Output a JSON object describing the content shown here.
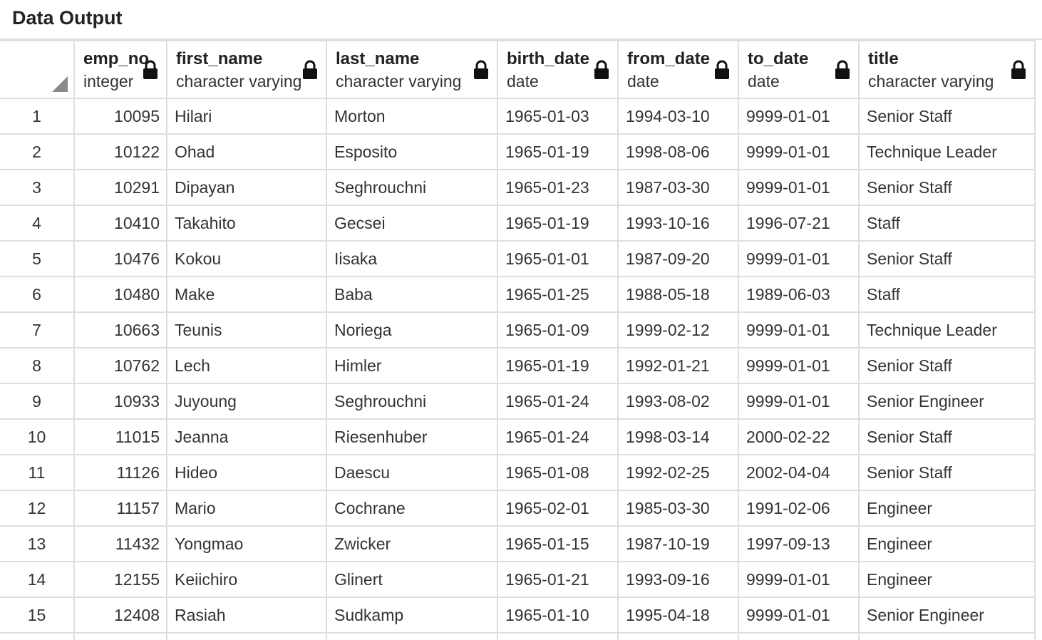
{
  "panel": {
    "title": "Data Output"
  },
  "icons": {
    "column_lock": "lock-icon",
    "corner": "select-all-corner"
  },
  "columns": [
    {
      "name": "emp_no",
      "type": "integer"
    },
    {
      "name": "first_name",
      "type": "character varying"
    },
    {
      "name": "last_name",
      "type": "character varying"
    },
    {
      "name": "birth_date",
      "type": "date"
    },
    {
      "name": "from_date",
      "type": "date"
    },
    {
      "name": "to_date",
      "type": "date"
    },
    {
      "name": "title",
      "type": "character varying"
    }
  ],
  "rows": [
    {
      "n": "1",
      "cells": [
        "10095",
        "Hilari",
        "Morton",
        "1965-01-03",
        "1994-03-10",
        "9999-01-01",
        "Senior Staff"
      ]
    },
    {
      "n": "2",
      "cells": [
        "10122",
        "Ohad",
        "Esposito",
        "1965-01-19",
        "1998-08-06",
        "9999-01-01",
        "Technique Leader"
      ]
    },
    {
      "n": "3",
      "cells": [
        "10291",
        "Dipayan",
        "Seghrouchni",
        "1965-01-23",
        "1987-03-30",
        "9999-01-01",
        "Senior Staff"
      ]
    },
    {
      "n": "4",
      "cells": [
        "10410",
        "Takahito",
        "Gecsei",
        "1965-01-19",
        "1993-10-16",
        "1996-07-21",
        "Staff"
      ]
    },
    {
      "n": "5",
      "cells": [
        "10476",
        "Kokou",
        "Iisaka",
        "1965-01-01",
        "1987-09-20",
        "9999-01-01",
        "Senior Staff"
      ]
    },
    {
      "n": "6",
      "cells": [
        "10480",
        "Make",
        "Baba",
        "1965-01-25",
        "1988-05-18",
        "1989-06-03",
        "Staff"
      ]
    },
    {
      "n": "7",
      "cells": [
        "10663",
        "Teunis",
        "Noriega",
        "1965-01-09",
        "1999-02-12",
        "9999-01-01",
        "Technique Leader"
      ]
    },
    {
      "n": "8",
      "cells": [
        "10762",
        "Lech",
        "Himler",
        "1965-01-19",
        "1992-01-21",
        "9999-01-01",
        "Senior Staff"
      ]
    },
    {
      "n": "9",
      "cells": [
        "10933",
        "Juyoung",
        "Seghrouchni",
        "1965-01-24",
        "1993-08-02",
        "9999-01-01",
        "Senior Engineer"
      ]
    },
    {
      "n": "10",
      "cells": [
        "11015",
        "Jeanna",
        "Riesenhuber",
        "1965-01-24",
        "1998-03-14",
        "2000-02-22",
        "Senior Staff"
      ]
    },
    {
      "n": "11",
      "cells": [
        "11126",
        "Hideo",
        "Daescu",
        "1965-01-08",
        "1992-02-25",
        "2002-04-04",
        "Senior Staff"
      ]
    },
    {
      "n": "12",
      "cells": [
        "11157",
        "Mario",
        "Cochrane",
        "1965-02-01",
        "1985-03-30",
        "1991-02-06",
        "Engineer"
      ]
    },
    {
      "n": "13",
      "cells": [
        "11432",
        "Yongmao",
        "Zwicker",
        "1965-01-15",
        "1987-10-19",
        "1997-09-13",
        "Engineer"
      ]
    },
    {
      "n": "14",
      "cells": [
        "12155",
        "Keiichiro",
        "Glinert",
        "1965-01-21",
        "1993-09-16",
        "9999-01-01",
        "Engineer"
      ]
    },
    {
      "n": "15",
      "cells": [
        "12408",
        "Rasiah",
        "Sudkamp",
        "1965-01-10",
        "1995-04-18",
        "9999-01-01",
        "Senior Engineer"
      ]
    },
    {
      "n": "",
      "cells": [
        "",
        "",
        "",
        "",
        "",
        "",
        ""
      ]
    }
  ]
}
